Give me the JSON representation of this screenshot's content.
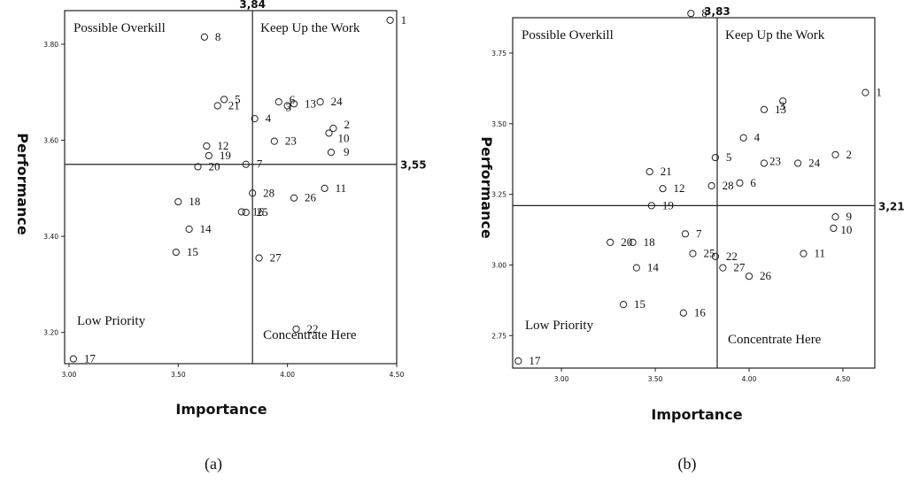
{
  "chart_data": [
    {
      "type": "scatter",
      "caption": "(a)",
      "xlabel": "Importance",
      "ylabel": "Performance",
      "xlim": [
        2.98,
        4.5
      ],
      "ylim": [
        3.135,
        3.87
      ],
      "xticks": [
        3.0,
        3.5,
        4.0,
        4.5
      ],
      "xtick_labels": [
        "3.00",
        "3.50",
        "4.00",
        "4.50"
      ],
      "yticks": [
        3.2,
        3.4,
        3.6,
        3.8
      ],
      "ytick_labels": [
        "3.20",
        "3.40",
        "3.60",
        "3.80"
      ],
      "x_cut": 3.84,
      "x_cut_label": "3,84",
      "y_cut": 3.55,
      "y_cut_label": "3,55",
      "quadrants": {
        "top_left": "Possible Overkill",
        "top_right": "Keep Up the Work",
        "bottom_left": "Low Priority",
        "bottom_right": "Concentrate Here"
      },
      "points": [
        {
          "id": "1",
          "x": 4.47,
          "y": 3.85
        },
        {
          "id": "2",
          "x": 4.21,
          "y": 3.625
        },
        {
          "id": "3",
          "x": 4.0,
          "y": 3.672
        },
        {
          "id": "4",
          "x": 3.85,
          "y": 3.645
        },
        {
          "id": "5",
          "x": 3.71,
          "y": 3.685
        },
        {
          "id": "6",
          "x": 3.96,
          "y": 3.68
        },
        {
          "id": "7",
          "x": 3.81,
          "y": 3.55
        },
        {
          "id": "8",
          "x": 3.62,
          "y": 3.815
        },
        {
          "id": "9",
          "x": 4.2,
          "y": 3.575
        },
        {
          "id": "10",
          "x": 4.19,
          "y": 3.615
        },
        {
          "id": "11",
          "x": 4.17,
          "y": 3.5
        },
        {
          "id": "12",
          "x": 3.63,
          "y": 3.588
        },
        {
          "id": "13",
          "x": 4.03,
          "y": 3.676
        },
        {
          "id": "14",
          "x": 3.55,
          "y": 3.415
        },
        {
          "id": "15",
          "x": 3.49,
          "y": 3.367
        },
        {
          "id": "16",
          "x": 3.79,
          "y": 3.451
        },
        {
          "id": "17",
          "x": 3.02,
          "y": 3.145
        },
        {
          "id": "18",
          "x": 3.5,
          "y": 3.472
        },
        {
          "id": "19",
          "x": 3.64,
          "y": 3.568
        },
        {
          "id": "20",
          "x": 3.59,
          "y": 3.545
        },
        {
          "id": "21",
          "x": 3.68,
          "y": 3.672
        },
        {
          "id": "22",
          "x": 4.04,
          "y": 3.207
        },
        {
          "id": "23",
          "x": 3.94,
          "y": 3.598
        },
        {
          "id": "24",
          "x": 4.15,
          "y": 3.68
        },
        {
          "id": "25",
          "x": 3.81,
          "y": 3.45
        },
        {
          "id": "26",
          "x": 4.03,
          "y": 3.48
        },
        {
          "id": "27",
          "x": 3.87,
          "y": 3.355
        },
        {
          "id": "28",
          "x": 3.84,
          "y": 3.49
        }
      ]
    },
    {
      "type": "scatter",
      "caption": "(b)",
      "xlabel": "Importance",
      "ylabel": "Performance",
      "xlim": [
        2.74,
        4.67
      ],
      "ylim": [
        2.635,
        3.875
      ],
      "xticks": [
        3.0,
        3.5,
        4.0,
        4.5
      ],
      "xtick_labels": [
        "3.00",
        "3.50",
        "4.00",
        "4.50"
      ],
      "yticks": [
        2.75,
        3.0,
        3.25,
        3.5,
        3.75
      ],
      "ytick_labels": [
        "2.75",
        "3.00",
        "3.25",
        "3.50",
        "3.75"
      ],
      "x_cut": 3.83,
      "x_cut_label": "3,83",
      "y_cut": 3.21,
      "y_cut_label": "3,21",
      "quadrants": {
        "top_left": "Possible Overkill",
        "top_right": "Keep Up the Work",
        "bottom_left": "Low Priority",
        "bottom_right": "Concentrate Here"
      },
      "points": [
        {
          "id": "1",
          "x": 4.62,
          "y": 3.61
        },
        {
          "id": "2",
          "x": 4.46,
          "y": 3.39
        },
        {
          "id": "3",
          "x": 4.18,
          "y": 3.58
        },
        {
          "id": "4",
          "x": 3.97,
          "y": 3.45
        },
        {
          "id": "5",
          "x": 3.82,
          "y": 3.38
        },
        {
          "id": "6",
          "x": 3.95,
          "y": 3.29
        },
        {
          "id": "7",
          "x": 3.66,
          "y": 3.11
        },
        {
          "id": "8",
          "x": 3.69,
          "y": 3.89
        },
        {
          "id": "9",
          "x": 4.46,
          "y": 3.17
        },
        {
          "id": "10",
          "x": 4.45,
          "y": 3.13
        },
        {
          "id": "11",
          "x": 4.29,
          "y": 3.04
        },
        {
          "id": "12",
          "x": 3.54,
          "y": 3.27
        },
        {
          "id": "13",
          "x": 4.08,
          "y": 3.55
        },
        {
          "id": "14",
          "x": 3.4,
          "y": 2.99
        },
        {
          "id": "15",
          "x": 3.33,
          "y": 2.86
        },
        {
          "id": "16",
          "x": 3.65,
          "y": 2.83
        },
        {
          "id": "17",
          "x": 2.77,
          "y": 2.66
        },
        {
          "id": "18",
          "x": 3.38,
          "y": 3.08
        },
        {
          "id": "19",
          "x": 3.48,
          "y": 3.21
        },
        {
          "id": "20",
          "x": 3.26,
          "y": 3.08
        },
        {
          "id": "21",
          "x": 3.47,
          "y": 3.33
        },
        {
          "id": "22",
          "x": 3.82,
          "y": 3.03
        },
        {
          "id": "23",
          "x": 4.08,
          "y": 3.36
        },
        {
          "id": "24",
          "x": 4.26,
          "y": 3.36
        },
        {
          "id": "25",
          "x": 3.7,
          "y": 3.04
        },
        {
          "id": "26",
          "x": 4.0,
          "y": 2.96
        },
        {
          "id": "27",
          "x": 3.86,
          "y": 2.99
        },
        {
          "id": "28",
          "x": 3.8,
          "y": 3.28
        }
      ]
    }
  ]
}
